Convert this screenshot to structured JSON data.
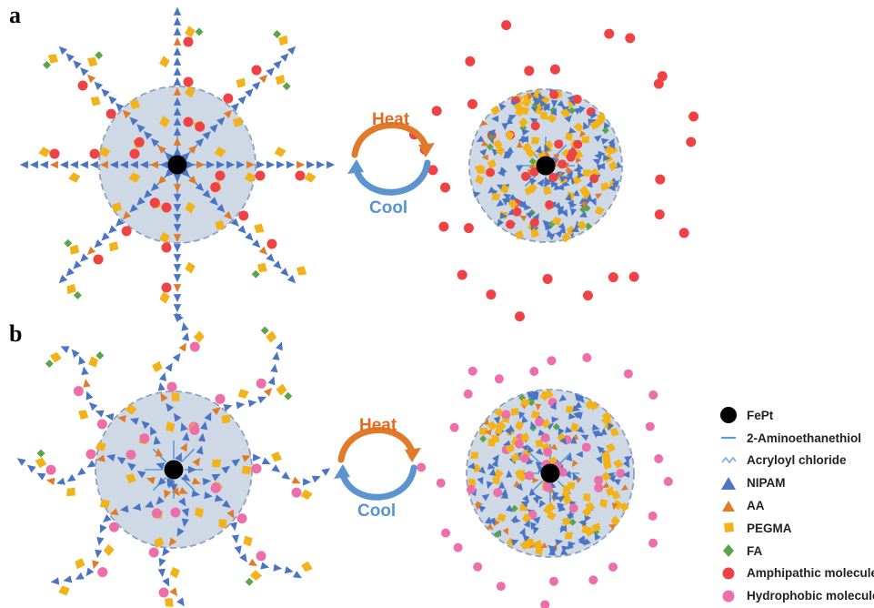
{
  "panels": [
    {
      "label": "a",
      "heat_label": "Heat",
      "cool_label": "Cool"
    },
    {
      "label": "b",
      "heat_label": "Heat",
      "cool_label": "Cool"
    }
  ],
  "colors": {
    "core": "#000000",
    "shell_fill": "#cfd9e6",
    "shell_border": "#8fa2bd",
    "nipam": "#4a74c4",
    "aa": "#e07b2b",
    "pegma": "#f2b21a",
    "fa": "#5ba548",
    "amphipathic": "#ee4245",
    "hydrophobic": "#ec6fa9",
    "linker": "#5b9bd5",
    "heat_arrow": "#e07b2b",
    "cool_arrow": "#5b94cf",
    "heat_text": "#e46c1e",
    "cool_text": "#5b94cf"
  },
  "legend": [
    {
      "icon": "fept-icon",
      "label": "FePt"
    },
    {
      "icon": "aminoethanethiol-icon",
      "label": "2-Aminoethanethiol"
    },
    {
      "icon": "acryloyl-chloride-icon",
      "label": "Acryloyl chloride"
    },
    {
      "icon": "nipam-icon",
      "label": "NIPAM"
    },
    {
      "icon": "aa-icon",
      "label": "AA"
    },
    {
      "icon": "pegma-icon",
      "label": "PEGMA"
    },
    {
      "icon": "fa-icon",
      "label": "FA"
    },
    {
      "icon": "amphipathic-molecule-icon",
      "label": "Amphipathic molecule"
    },
    {
      "icon": "hydrophobic-molecule-icon",
      "label": "Hydrophobic molecule"
    }
  ]
}
